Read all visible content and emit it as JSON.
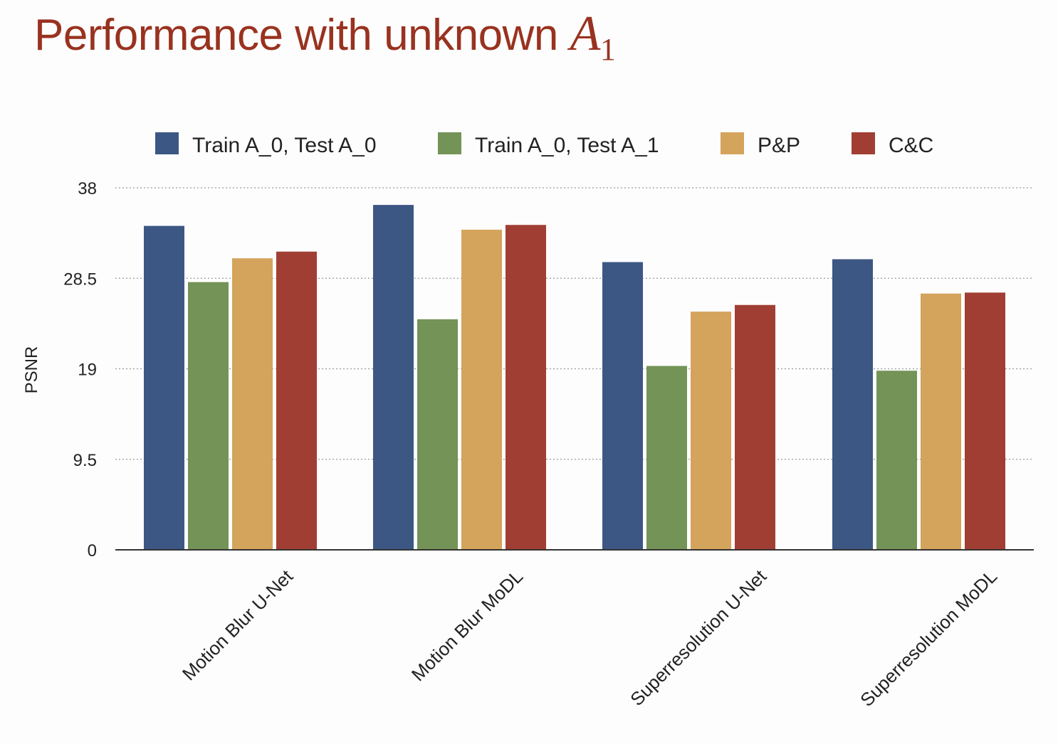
{
  "slide": {
    "title_text": "Performance with unknown",
    "title_math": "A",
    "title_math_sub": "1"
  },
  "chart_data": {
    "type": "bar",
    "ylabel": "PSNR",
    "xlabel": "",
    "ylim": [
      0,
      38
    ],
    "yticks": [
      "0",
      "9.5",
      "19",
      "28.5",
      "38"
    ],
    "grid": true,
    "legend_position": "top",
    "categories": [
      "Motion Blur U-Net",
      "Motion Blur MoDL",
      "Superresolution U-Net",
      "Superresolution MoDL"
    ],
    "series": [
      {
        "name": "Train A_0, Test A_0",
        "color": "#3d5784",
        "values": [
          34.0,
          36.2,
          30.2,
          30.5
        ]
      },
      {
        "name": "Train A_0, Test A_1",
        "color": "#739357",
        "values": [
          28.1,
          24.2,
          19.3,
          18.8
        ]
      },
      {
        "name": "P&P",
        "color": "#d4a35c",
        "values": [
          30.6,
          33.6,
          25.0,
          26.9
        ]
      },
      {
        "name": "C&C",
        "color": "#a13e33",
        "values": [
          31.3,
          34.1,
          25.7,
          27.0
        ]
      }
    ]
  }
}
